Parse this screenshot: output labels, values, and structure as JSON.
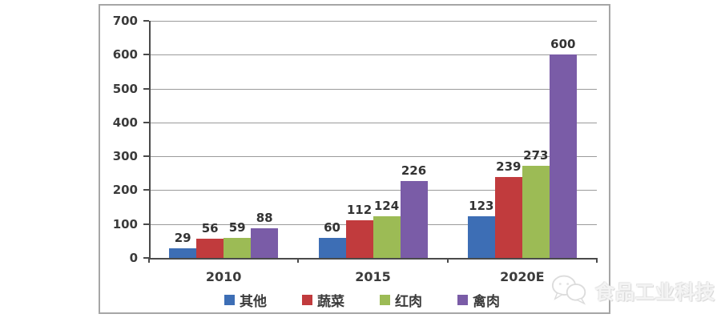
{
  "chart_data": {
    "type": "bar",
    "title": "",
    "xlabel": "",
    "ylabel": "",
    "categories": [
      "2010",
      "2015",
      "2020E"
    ],
    "series": [
      {
        "name": "其他",
        "color": "#3d6eb5",
        "values": [
          29,
          60,
          123
        ]
      },
      {
        "name": "蔬菜",
        "color": "#c13b3d",
        "values": [
          56,
          112,
          239
        ]
      },
      {
        "name": "红肉",
        "color": "#9cbb55",
        "values": [
          59,
          124,
          273
        ]
      },
      {
        "name": "禽肉",
        "color": "#7a5ca7",
        "values": [
          88,
          226,
          600
        ]
      }
    ],
    "ylim": [
      0,
      700
    ],
    "ytick_interval": 100,
    "yticks": [
      0,
      100,
      200,
      300,
      400,
      500,
      600,
      700
    ],
    "grid": true,
    "legend_position": "bottom",
    "value_labels_shown": true
  },
  "colors": {
    "gridline": "#9b9b9b",
    "axis": "#4a4a4a",
    "chart_border": "#a6a6a6",
    "text": "#3b3b3b"
  },
  "watermark": {
    "text": "食品工业科技",
    "logo": "chat-bubbles-icon"
  }
}
